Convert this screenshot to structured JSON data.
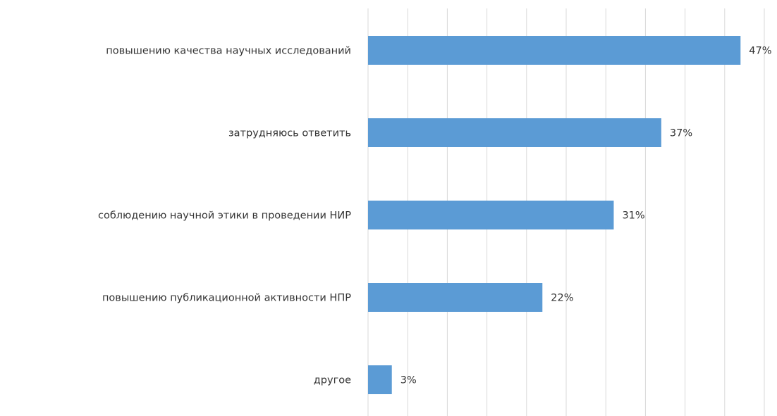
{
  "chart_data": {
    "type": "barh",
    "categories": [
      "повышению качества научных исследований",
      "затрудняюсь ответить",
      "соблюдению научной этики в проведении НИР",
      "повышению публикационной активности НПР",
      "другое"
    ],
    "values": [
      47,
      37,
      31,
      22,
      3
    ],
    "value_labels": [
      "47%",
      "37%",
      "31%",
      "22%",
      "3%"
    ],
    "color": "#5b9bd5",
    "xlim": [
      0,
      50
    ],
    "xticks": [
      0,
      5,
      10,
      15,
      20,
      25,
      30,
      35,
      40,
      45,
      50
    ],
    "grid": true
  }
}
